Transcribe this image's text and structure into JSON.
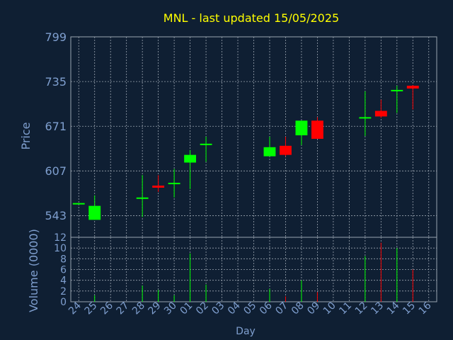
{
  "chart_data": [
    {
      "type": "candlestick",
      "title": "MNL - last updated 15/05/2025",
      "ylabel": "Price",
      "xlabel": "Day",
      "ylim": [
        512,
        799
      ],
      "yticks": [
        543,
        607,
        671,
        735,
        799
      ],
      "grid": true,
      "categories": [
        "24",
        "25",
        "26",
        "27",
        "28",
        "29",
        "30",
        "01",
        "02",
        "03",
        "04",
        "05",
        "06",
        "07",
        "08",
        "09",
        "10",
        "11",
        "12",
        "13",
        "14",
        "15",
        "16"
      ],
      "candles": [
        {
          "day": "24",
          "open": 560,
          "high": 560,
          "low": 560,
          "close": 560
        },
        {
          "day": "25",
          "open": 537,
          "high": 572,
          "low": 537,
          "close": 557
        },
        {
          "day": "28",
          "open": 568,
          "high": 601,
          "low": 541,
          "close": 568
        },
        {
          "day": "29",
          "open": 586,
          "high": 601,
          "low": 577,
          "close": 583
        },
        {
          "day": "30",
          "open": 589,
          "high": 610,
          "low": 569,
          "close": 589
        },
        {
          "day": "01",
          "open": 619,
          "high": 637,
          "low": 581,
          "close": 630
        },
        {
          "day": "02",
          "open": 645,
          "high": 656,
          "low": 620,
          "close": 645
        },
        {
          "day": "06",
          "open": 628,
          "high": 656,
          "low": 628,
          "close": 641
        },
        {
          "day": "07",
          "open": 643,
          "high": 656,
          "low": 628,
          "close": 630
        },
        {
          "day": "08",
          "open": 658,
          "high": 679,
          "low": 644,
          "close": 679
        },
        {
          "day": "09",
          "open": 679,
          "high": 684,
          "low": 653,
          "close": 653
        },
        {
          "day": "12",
          "open": 683,
          "high": 721,
          "low": 657,
          "close": 683
        },
        {
          "day": "13",
          "open": 693,
          "high": 709,
          "low": 683,
          "close": 685
        },
        {
          "day": "14",
          "open": 722,
          "high": 729,
          "low": 690,
          "close": 722
        },
        {
          "day": "15",
          "open": 729,
          "high": 730,
          "low": 695,
          "close": 725
        }
      ]
    },
    {
      "type": "bar",
      "ylabel": "Volume (0000)",
      "xlabel": "Day",
      "ylim": [
        0,
        12
      ],
      "yticks": [
        0,
        2,
        4,
        6,
        8,
        10,
        12
      ],
      "grid": true,
      "bars": [
        {
          "day": "25",
          "value": 1.2,
          "color": "#00ff00"
        },
        {
          "day": "28",
          "value": 3.0,
          "color": "#00ff00"
        },
        {
          "day": "29",
          "value": 2.2,
          "color": "#00ff00"
        },
        {
          "day": "30",
          "value": 1.2,
          "color": "#00ff00"
        },
        {
          "day": "01",
          "value": 9.0,
          "color": "#00ff00"
        },
        {
          "day": "02",
          "value": 3.2,
          "color": "#00ff00"
        },
        {
          "day": "06",
          "value": 2.4,
          "color": "#00ff00"
        },
        {
          "day": "07",
          "value": 1.0,
          "color": "#ff0000"
        },
        {
          "day": "08",
          "value": 4.0,
          "color": "#00ff00"
        },
        {
          "day": "09",
          "value": 1.8,
          "color": "#ff0000"
        },
        {
          "day": "12",
          "value": 8.5,
          "color": "#00ff00"
        },
        {
          "day": "13",
          "value": 11.0,
          "color": "#ff0000"
        },
        {
          "day": "14",
          "value": 10.0,
          "color": "#00ff00"
        },
        {
          "day": "15",
          "value": 6.0,
          "color": "#ff0000"
        }
      ]
    }
  ],
  "colors": {
    "background": "#0f1f33",
    "grid": "#9aa4b0",
    "axis_text": "#7f9fcf",
    "title": "#ffff00",
    "up": "#00ff00",
    "down": "#ff0000"
  }
}
